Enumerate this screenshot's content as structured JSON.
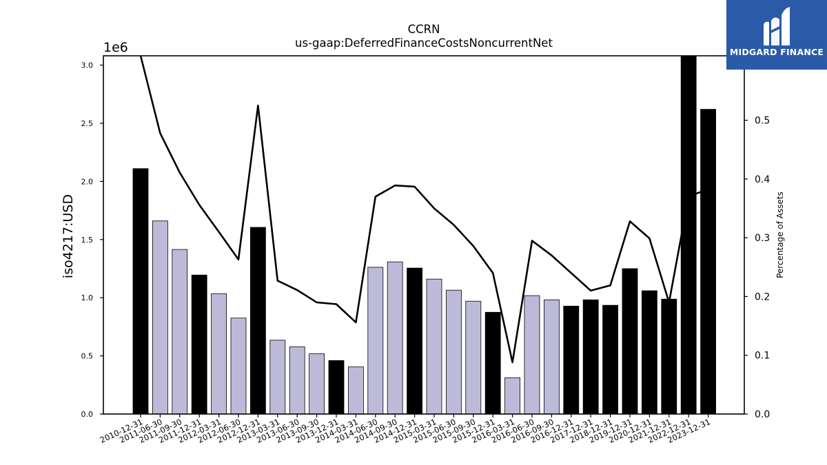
{
  "chart_data": {
    "type": "bar",
    "title": "CCRN",
    "subtitle": "us-gaap:DeferredFinanceCostsNoncurrentNet",
    "ylabel": "iso4217:USD",
    "y2label": "Percentage of Assets",
    "y_multiplier_label": "1e6",
    "ylim": [
      0,
      3080000
    ],
    "y2lim": [
      0,
      0.6097
    ],
    "yticks": [
      "0.0",
      "0.5",
      "1.0",
      "1.5",
      "2.0",
      "2.5",
      "3.0"
    ],
    "y2ticks": [
      "0.0",
      "0.1",
      "0.2",
      "0.3",
      "0.4",
      "0.5"
    ],
    "grid": false,
    "legend": "none",
    "colors": {
      "annual": "#000000",
      "quarterly": "#bdbad9",
      "line": "#000000"
    },
    "categories": [
      "2010-12-31",
      "2011-06-30",
      "2011-09-30",
      "2011-12-31",
      "2012-03-31",
      "2012-06-30",
      "2012-12-31",
      "2013-03-31",
      "2013-06-30",
      "2013-09-30",
      "2013-12-31",
      "2014-03-31",
      "2014-06-30",
      "2014-09-30",
      "2014-12-31",
      "2015-03-31",
      "2015-06-30",
      "2015-09-30",
      "2015-12-31",
      "2016-03-31",
      "2016-06-30",
      "2016-09-30",
      "2016-12-31",
      "2017-12-31",
      "2018-12-31",
      "2019-12-31",
      "2020-12-31",
      "2021-12-31",
      "2022-12-31",
      "2023-12-31"
    ],
    "values": [
      2110000,
      1660000,
      1415000,
      1195000,
      1035000,
      825000,
      1605000,
      635000,
      578000,
      518000,
      460000,
      405000,
      1262000,
      1308000,
      1255000,
      1160000,
      1065000,
      970000,
      875000,
      312000,
      1018000,
      982000,
      928000,
      982000,
      935000,
      1250000,
      1060000,
      988000,
      3080000,
      2620000
    ],
    "period_type": [
      "annual",
      "quarterly",
      "quarterly",
      "annual",
      "quarterly",
      "quarterly",
      "annual",
      "quarterly",
      "quarterly",
      "quarterly",
      "annual",
      "quarterly",
      "quarterly",
      "quarterly",
      "annual",
      "quarterly",
      "quarterly",
      "quarterly",
      "annual",
      "quarterly",
      "quarterly",
      "quarterly",
      "annual",
      "annual",
      "annual",
      "annual",
      "annual",
      "annual",
      "annual",
      "annual"
    ],
    "percent_of_assets": [
      0.61,
      0.478,
      0.411,
      0.356,
      0.31,
      0.263,
      0.525,
      0.227,
      0.211,
      0.19,
      0.187,
      0.156,
      0.37,
      0.389,
      0.387,
      0.35,
      0.322,
      0.286,
      0.24,
      0.088,
      0.295,
      0.27,
      0.24,
      0.21,
      0.219,
      0.328,
      0.299,
      0.19,
      0.37,
      0.383
    ]
  },
  "logo": {
    "text": "MIDGARD FINANCE"
  }
}
